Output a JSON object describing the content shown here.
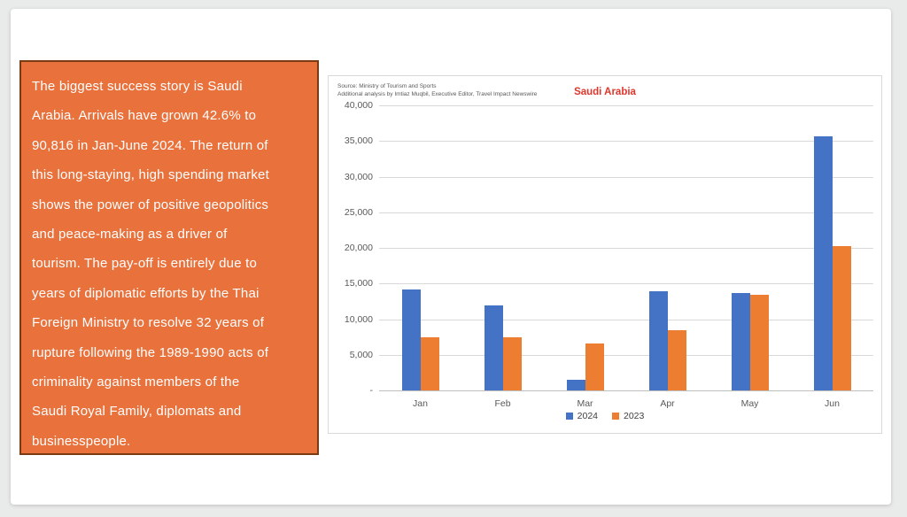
{
  "page": {
    "background": "#E9EAEA"
  },
  "slide": {
    "textbox": {
      "text": "The biggest success story is Saudi\nArabia. Arrivals have grown 42.6% to\n90,816 in Jan-June 2024. The return of\nthis long-staying, high spending market\nshows the power of positive geopolitics\nand peace-making as a driver of\ntourism. The pay-off is entirely due to\nyears of diplomatic efforts by the Thai\nForeign Ministry to resolve 32 years of\nrupture following the 1989-1990 acts of\ncriminality against members of the\nSaudi Royal Family, diplomats and\nbusinesspeople.",
      "fill_color": "#E8713C",
      "border_color": "#7A3B12",
      "text_color": "#FFFFFF"
    }
  },
  "chart_data": {
    "type": "bar",
    "title": "Saudi Arabia",
    "title_color": "#E0352B",
    "source_line1": "Source: Ministry of Tourism and Sports",
    "source_line2": "Additional analysis by Imtiaz Muqbil, Executive Editor, Travel Impact Newswire",
    "categories": [
      "Jan",
      "Feb",
      "Mar",
      "Apr",
      "May",
      "Jun"
    ],
    "series": [
      {
        "name": "2024",
        "color": "#4472C4",
        "values": [
          14200,
          11900,
          1500,
          13900,
          13650,
          35650
        ]
      },
      {
        "name": "2023",
        "color": "#ED7D31",
        "values": [
          7400,
          7400,
          6550,
          8450,
          13400,
          20250
        ]
      }
    ],
    "ylim": [
      0,
      40000
    ],
    "ytick_step": 5000,
    "ytick_labels": [
      "-",
      "5,000",
      "10,000",
      "15,000",
      "20,000",
      "25,000",
      "30,000",
      "35,000",
      "40,000"
    ],
    "grid": true,
    "legend_position": "bottom",
    "gridline_color": "#D9D9D9"
  }
}
